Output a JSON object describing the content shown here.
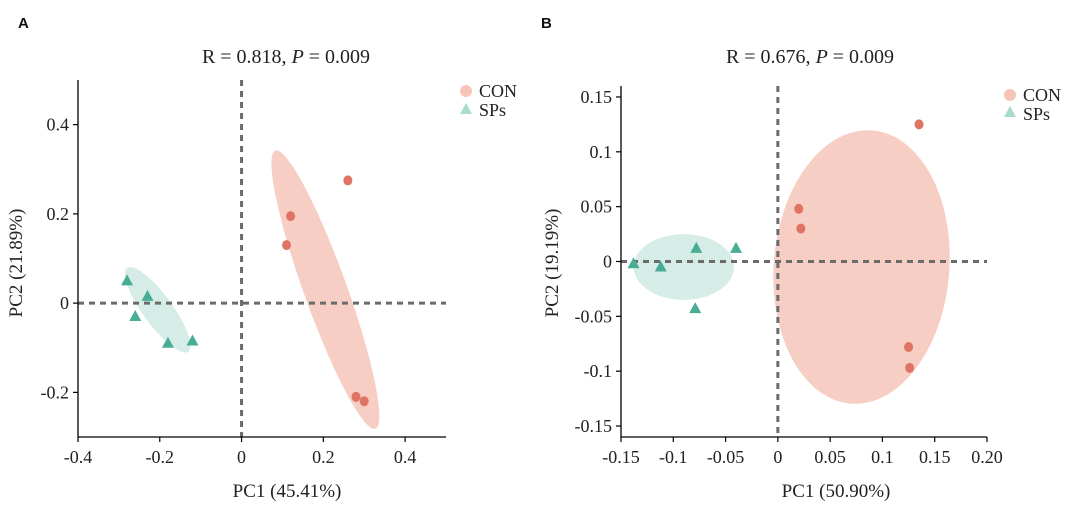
{
  "chart_data": [
    {
      "type": "scatter",
      "panel_label": "A",
      "stat_parts": [
        "R = 0.818, ",
        "P",
        " = 0.009"
      ],
      "xlabel": "PC1 (45.41%)",
      "ylabel": "PC2 (21.89%)",
      "xlim": [
        -0.4,
        0.5
      ],
      "ylim": [
        -0.3,
        0.5
      ],
      "xticks": [
        -0.4,
        -0.2,
        0,
        0.2,
        0.4
      ],
      "xtick_labels": [
        "-0.4",
        "-0.2",
        "0",
        "0.2",
        "0.4"
      ],
      "yticks": [
        -0.2,
        0,
        0.2,
        0.4
      ],
      "ytick_labels": [
        "-0.2",
        "0",
        "0.2",
        "0.4"
      ],
      "legend": [
        "CON",
        "SPs"
      ],
      "series": [
        {
          "name": "CON",
          "marker": "circle",
          "color": "#e07364",
          "ellipse_color": "#f6c5b8",
          "x": [
            0.26,
            0.12,
            0.11,
            0.28,
            0.3
          ],
          "y": [
            0.275,
            0.195,
            0.13,
            -0.21,
            -0.22
          ],
          "ellipse": {
            "cx": 0.205,
            "cy": 0.03,
            "rx": 0.335,
            "ry": 0.052,
            "angle_deg": 111.5
          }
        },
        {
          "name": "SPs",
          "marker": "triangle",
          "color": "#48ad96",
          "ellipse_color": "#cfeae3",
          "x": [
            -0.28,
            -0.23,
            -0.26,
            -0.18,
            -0.12
          ],
          "y": [
            0.05,
            0.015,
            -0.03,
            -0.09,
            -0.085
          ],
          "ellipse": {
            "cx": -0.205,
            "cy": -0.015,
            "rx": 0.12,
            "ry": 0.035,
            "angle_deg": 129
          }
        }
      ]
    },
    {
      "type": "scatter",
      "panel_label": "B",
      "stat_parts": [
        "R = 0.676, ",
        "P",
        " = 0.009"
      ],
      "xlabel": "PC1 (50.90%)",
      "ylabel": "PC2 (19.19%)",
      "xlim": [
        -0.15,
        0.2
      ],
      "ylim": [
        -0.16,
        0.16
      ],
      "xticks": [
        -0.15,
        -0.1,
        -0.05,
        0,
        0.05,
        0.1,
        0.15,
        0.2
      ],
      "xtick_labels": [
        "-0.15",
        "-0.1",
        "-0.05",
        "0",
        "0.05",
        "0.1",
        "0.15",
        "0.20"
      ],
      "yticks": [
        -0.15,
        -0.1,
        -0.05,
        0,
        0.05,
        0.1,
        0.15
      ],
      "ytick_labels": [
        "-0.15",
        "-0.1",
        "-0.05",
        "0",
        "0.05",
        "0.1",
        "0.15"
      ],
      "legend": [
        "CON",
        "SPs"
      ],
      "series": [
        {
          "name": "CON",
          "marker": "circle",
          "color": "#e07364",
          "ellipse_color": "#f6c5b8",
          "x": [
            0.135,
            0.02,
            0.022,
            0.125,
            0.126
          ],
          "y": [
            0.125,
            0.048,
            0.03,
            -0.078,
            -0.097
          ],
          "ellipse": {
            "cx": 0.08,
            "cy": -0.005,
            "rx": 0.084,
            "ry": 0.125,
            "angle_deg": -5
          }
        },
        {
          "name": "SPs",
          "marker": "triangle",
          "color": "#48ad96",
          "ellipse_color": "#cfeae3",
          "x": [
            -0.138,
            -0.112,
            -0.078,
            -0.04,
            -0.079
          ],
          "y": [
            -0.002,
            -0.005,
            0.012,
            0.012,
            -0.043
          ],
          "ellipse": {
            "cx": -0.09,
            "cy": -0.005,
            "rx": 0.048,
            "ry": 0.03,
            "angle_deg": 0
          }
        }
      ]
    }
  ]
}
